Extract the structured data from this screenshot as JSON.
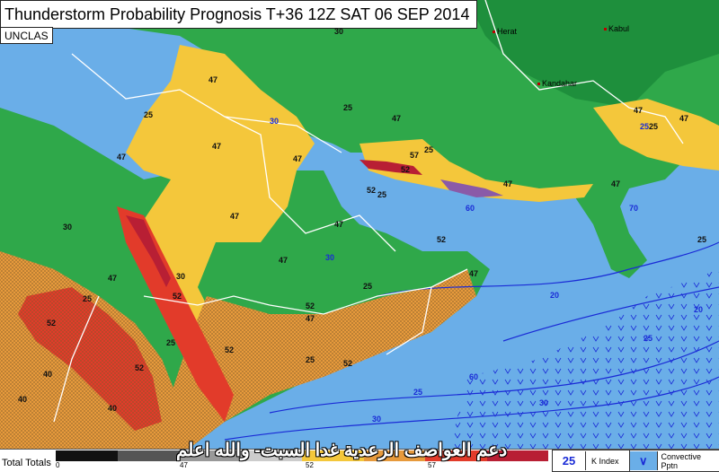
{
  "map": {
    "title": "Thunderstorm Probability Prognosis T+36 12Z SAT 06 SEP 2014",
    "classification": "UNCLAS",
    "cities": [
      {
        "name": "Herat"
      },
      {
        "name": "Kabul"
      },
      {
        "name": "Kandahar"
      }
    ],
    "contour_labels": {
      "k_index_values": [
        "47",
        "47",
        "47",
        "47",
        "47",
        "47",
        "47",
        "47",
        "47",
        "47",
        "47",
        "47",
        "47",
        "47",
        "47",
        "47",
        "52",
        "52",
        "52",
        "52",
        "52",
        "52",
        "52",
        "52",
        "52",
        "57",
        "30",
        "30",
        "30",
        "25",
        "25",
        "25",
        "25",
        "25",
        "25",
        "25",
        "25",
        "25",
        "25",
        "20",
        "20",
        "20",
        "40",
        "40",
        "40",
        "40",
        "40"
      ],
      "blue_values": [
        "30",
        "30",
        "30",
        "25",
        "25",
        "20",
        "20",
        "60",
        "60",
        "70",
        "30",
        "25"
      ]
    }
  },
  "bottom_bar": {
    "label": "Total Totals",
    "scale_ticks": [
      "0",
      "47",
      "52",
      "57"
    ],
    "arabic_caption": "دعم العواصف الرعدية غدا السبت- والله اعلم",
    "legend": {
      "k_index_label": "K Index",
      "k_index_value": "25",
      "convective_label": "Convective Pptn"
    }
  },
  "colors": {
    "sea": "#6aaee8",
    "land_green": "#2fa84a",
    "land_dark": "#1e8f3c",
    "yellow": "#f4c73b",
    "orange": "#e79a3c",
    "red": "#e23b2a",
    "dark_red": "#b81f34",
    "purple": "#8a5aa8",
    "contour_blue": "#1a2bd6"
  }
}
